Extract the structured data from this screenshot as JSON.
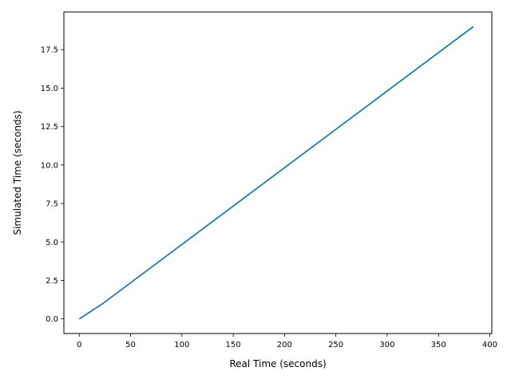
{
  "chart_data": {
    "type": "line",
    "title": "",
    "xlabel": "Real Time (seconds)",
    "ylabel": "Simulated Time (seconds)",
    "xlim": [
      -15,
      402
    ],
    "ylim": [
      -0.95,
      19.95
    ],
    "x_ticks": [
      0,
      50,
      100,
      150,
      200,
      250,
      300,
      350,
      400
    ],
    "x_tick_labels": [
      "0",
      "50",
      "100",
      "150",
      "200",
      "250",
      "300",
      "350",
      "400"
    ],
    "y_ticks": [
      0,
      2.5,
      5,
      7.5,
      10,
      12.5,
      15,
      17.5
    ],
    "y_tick_labels": [
      "0.0",
      "2.5",
      "5.0",
      "7.5",
      "10.0",
      "12.5",
      "15.0",
      "17.5"
    ],
    "grid": false,
    "legend": "none",
    "series": [
      {
        "color": "#0072b2",
        "x": [
          0,
          23,
          384
        ],
        "y": [
          0,
          1.0,
          19.0
        ]
      }
    ]
  }
}
